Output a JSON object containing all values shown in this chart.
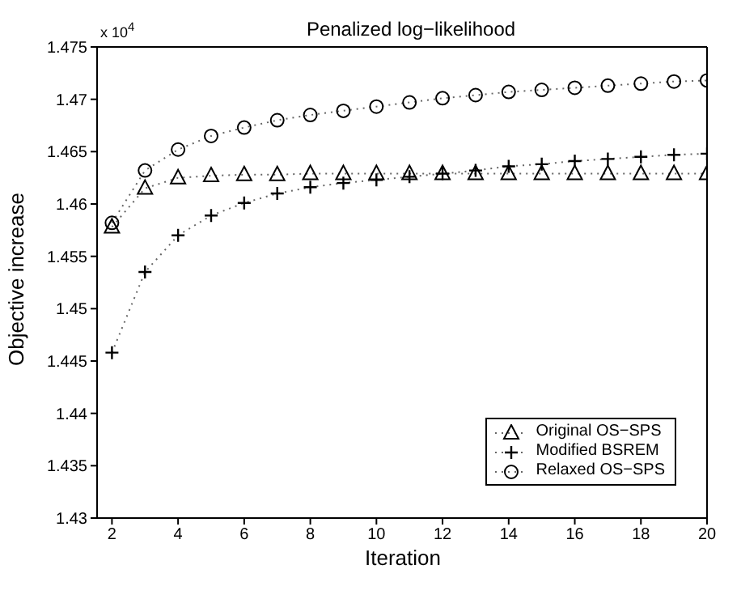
{
  "chart_data": {
    "type": "line",
    "title": "Penalized log−likelihood",
    "xlabel": "Iteration",
    "ylabel": "Objective increase",
    "annotations": [
      "x 10$^{4}$"
    ],
    "x": [
      2,
      3,
      4,
      5,
      6,
      7,
      8,
      9,
      10,
      11,
      12,
      13,
      14,
      15,
      16,
      17,
      18,
      19,
      20
    ],
    "series": [
      {
        "name": "Original OS−SPS",
        "color": "#000000",
        "marker": "triangle",
        "values": [
          1.4578,
          1.4615,
          1.4625,
          1.4627,
          1.4628,
          1.4628,
          1.4629,
          1.4629,
          1.4629,
          1.4629,
          1.4629,
          1.4629,
          1.4629,
          1.4629,
          1.4629,
          1.4629,
          1.4629,
          1.4629,
          1.4629
        ]
      },
      {
        "name": "Modified BSREM",
        "color": "#000000",
        "marker": "cross",
        "values": [
          1.4458,
          1.4535,
          1.457,
          1.4589,
          1.4601,
          1.461,
          1.4616,
          1.462,
          1.4623,
          1.4626,
          1.4629,
          1.4632,
          1.4636,
          1.4638,
          1.4641,
          1.4643,
          1.4645,
          1.4647,
          1.4648
        ]
      },
      {
        "name": "Relaxed OS−SPS",
        "color": "#000000",
        "marker": "circle",
        "values": [
          1.4582,
          1.4632,
          1.4652,
          1.4665,
          1.4673,
          1.468,
          1.4685,
          1.4689,
          1.4693,
          1.4697,
          1.4701,
          1.4704,
          1.4707,
          1.4709,
          1.4711,
          1.4713,
          1.4715,
          1.4717,
          1.4718
        ]
      }
    ],
    "xlim": [
      1.55,
      20
    ],
    "xticks": [
      2,
      4,
      6,
      8,
      10,
      12,
      14,
      16,
      18,
      20
    ],
    "ylim": [
      1.43,
      1.475
    ],
    "yticks": [
      1.43,
      1.435,
      1.44,
      1.445,
      1.45,
      1.455,
      1.46,
      1.465,
      1.47,
      1.475
    ],
    "grid": false,
    "legend": "bottom right",
    "line_style": "dotted"
  }
}
